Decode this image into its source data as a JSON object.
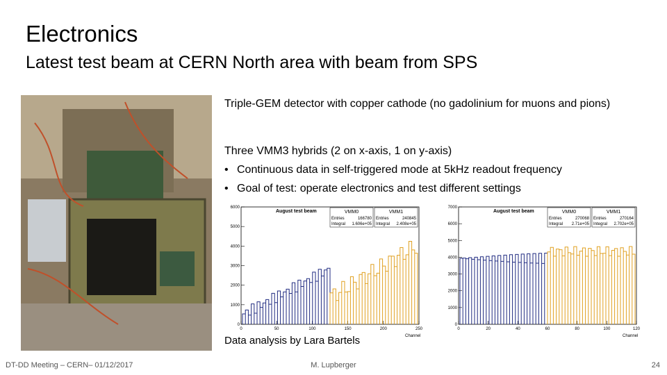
{
  "header": {
    "title": "Electronics",
    "subtitle": "Latest test beam at CERN North area with beam from SPS"
  },
  "body": {
    "paragraph1": "Triple-GEM detector with copper cathode (no gadolinium for muons and pions)",
    "paragraph2": "Three VMM3 hybrids (2 on x-axis, 1 on y-axis)",
    "bullets": [
      "Continuous data in self-triggered mode at 5kHz readout frequency",
      "Goal of test: operate electronics and test different settings"
    ],
    "caption": "Data analysis by Lara Bartels"
  },
  "plots": [
    {
      "title": "August test beam",
      "stat_labels": [
        "Entries",
        "Integral"
      ],
      "xlabel": "Channel",
      "stats": [
        {
          "name": "VMM0",
          "entries": "166780",
          "integral": "1.606e+05"
        },
        {
          "name": "VMM1",
          "entries": "240845",
          "integral": "2.408e+05"
        }
      ],
      "xlim": [
        0,
        250
      ],
      "ylim": [
        0,
        6000
      ],
      "xticks": [
        0,
        50,
        100,
        150,
        200,
        250
      ],
      "yticks": [
        0,
        1000,
        2000,
        3000,
        4000,
        5000,
        6000
      ]
    },
    {
      "title": "August test beam",
      "stat_labels": [
        "Entries",
        "Integral"
      ],
      "xlabel": "Channel",
      "stats": [
        {
          "name": "VMM0",
          "entries": "270068",
          "integral": "2.71e+05"
        },
        {
          "name": "VMM1",
          "entries": "270164",
          "integral": "2.702e+05"
        }
      ],
      "xlim": [
        0,
        120
      ],
      "ylim": [
        0,
        7000
      ],
      "xticks": [
        0,
        20,
        40,
        60,
        80,
        100,
        120
      ],
      "yticks": [
        0,
        1000,
        2000,
        3000,
        4000,
        5000,
        6000,
        7000
      ]
    }
  ],
  "footer": {
    "left": "DT-DD Meeting – CERN– 01/12/2017",
    "center": "M. Lupberger",
    "right": "24"
  }
}
